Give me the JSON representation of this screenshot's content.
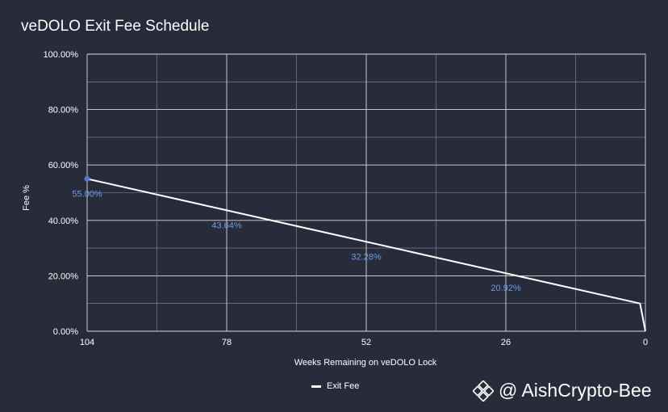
{
  "title": "veDOLO Exit Fee Schedule",
  "watermark": "@ AishCrypto-Bee",
  "colors": {
    "background": "#282b3a",
    "line": "#ffffff",
    "marker": "#4f7bd6",
    "data_label": "#6f9be8",
    "grid": "#8c8fa0",
    "grid_major": "#d8dae0"
  },
  "chart_data": {
    "type": "line",
    "title": "veDOLO Exit Fee Schedule",
    "xlabel": "Weeks Remaining on veDOLO Lock",
    "ylabel": "Fee %",
    "x_reversed": true,
    "xlim": [
      104,
      0
    ],
    "ylim": [
      0,
      100
    ],
    "x_ticks": [
      "104",
      "78",
      "52",
      "26",
      "0"
    ],
    "y_ticks": [
      "0.00%",
      "20.00%",
      "40.00%",
      "60.00%",
      "80.00%",
      "100.00%"
    ],
    "grid": true,
    "legend": "bottom",
    "series": [
      {
        "name": "Exit Fee",
        "x": [
          104,
          1,
          0
        ],
        "y": [
          55.0,
          10.0,
          0.0
        ]
      }
    ],
    "data_labels": [
      {
        "x": 104,
        "text": "55.00%"
      },
      {
        "x": 78,
        "text": "43.64%"
      },
      {
        "x": 52,
        "text": "32.28%"
      },
      {
        "x": 26,
        "text": "20.92%"
      }
    ]
  }
}
